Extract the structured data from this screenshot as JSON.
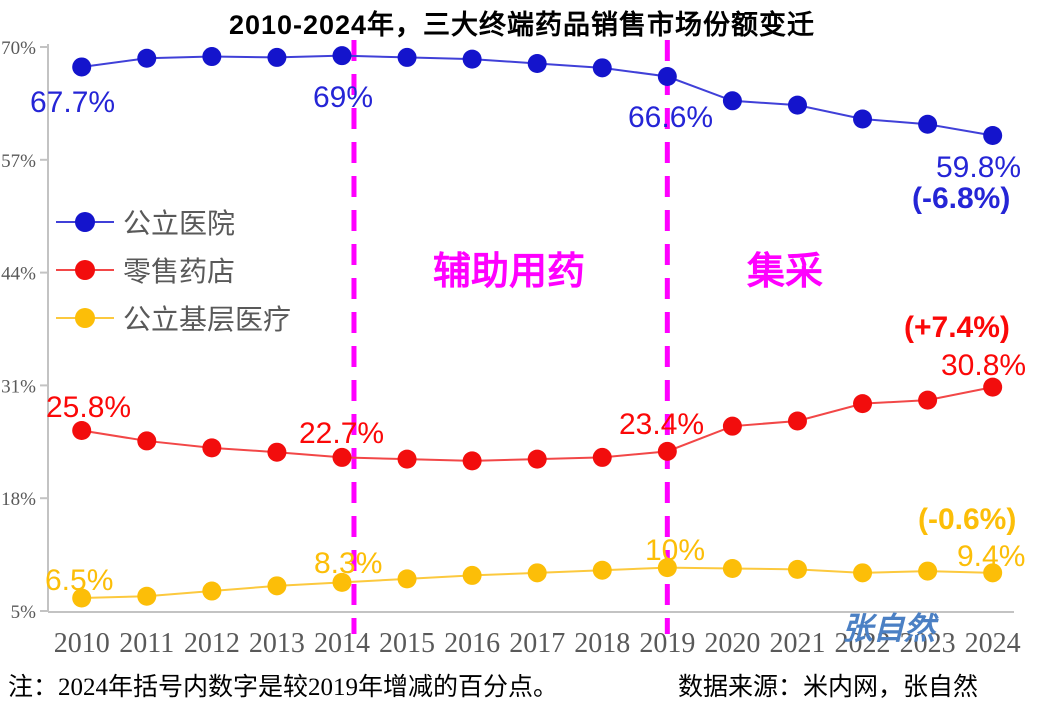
{
  "title": "2010-2024年，三大终端药品销售市场份额变迁",
  "chart_data": {
    "type": "line",
    "x": [
      2010,
      2011,
      2012,
      2013,
      2014,
      2015,
      2016,
      2017,
      2018,
      2019,
      2020,
      2021,
      2022,
      2023,
      2024
    ],
    "series": [
      {
        "id": "public-hospital",
        "name": "公立医院",
        "color": "#1414cc",
        "line_color": "#4040d8",
        "label_color": "#2525d6",
        "values": [
          67.7,
          68.7,
          68.9,
          68.8,
          69.0,
          68.8,
          68.6,
          68.1,
          67.6,
          66.6,
          63.8,
          63.3,
          61.7,
          61.1,
          59.8
        ]
      },
      {
        "id": "retail-pharmacy",
        "name": "零售药店",
        "color": "#f20d0d",
        "line_color": "#f24747",
        "label_color": "#fb0808",
        "values": [
          25.8,
          24.6,
          23.8,
          23.3,
          22.7,
          22.5,
          22.3,
          22.5,
          22.7,
          23.4,
          26.3,
          26.9,
          28.9,
          29.3,
          30.8
        ]
      },
      {
        "id": "primary-care",
        "name": "公立基层医疗",
        "color": "#fcbe08",
        "line_color": "#fcc93e",
        "label_color": "#fcbe08",
        "values": [
          6.5,
          6.7,
          7.3,
          7.9,
          8.3,
          8.7,
          9.1,
          9.4,
          9.7,
          10.0,
          9.9,
          9.8,
          9.4,
          9.6,
          9.4
        ]
      }
    ],
    "ylim": [
      5,
      70
    ],
    "ytick_values": [
      70,
      57,
      44,
      31,
      18,
      5
    ],
    "ytick_labels": [
      "70%",
      "57%",
      "44%",
      "31%",
      "18%",
      "5%"
    ],
    "grid": false,
    "legend_position": "inside-upper-left",
    "event_lines": [
      {
        "year": 2014,
        "label": "辅助用药",
        "color": "#ff00ff"
      },
      {
        "year": 2019,
        "label": "集采",
        "color": "#ff00ff"
      }
    ]
  },
  "annotations": {
    "public_hospital": {
      "y2010": "67.7%",
      "y2014": "69%",
      "y2019": "66.6%",
      "y2024": "59.8%",
      "delta_2024_vs_2019": "(-6.8%)"
    },
    "retail_pharmacy": {
      "y2010": "25.8%",
      "y2014": "22.7%",
      "y2019": "23.4%",
      "y2024": "30.8%",
      "delta_2024_vs_2019": "(+7.4%)"
    },
    "primary_care": {
      "y2010": "6.5%",
      "y2014": "8.3%",
      "y2019": "10%",
      "y2024": "9.4%",
      "delta_2024_vs_2019": "(-0.6%)"
    }
  },
  "watermark": {
    "text": "张自然",
    "color": "#4b80c4"
  },
  "footnote": {
    "note": "注：2024年括号内数字是较2019年增减的百分点。",
    "source": "数据来源：米内网，张自然"
  },
  "colors": {
    "axis": "#c3c3c3",
    "tick_text": "#595959",
    "event_line": "#ff00ff",
    "title_text": "#000000"
  }
}
